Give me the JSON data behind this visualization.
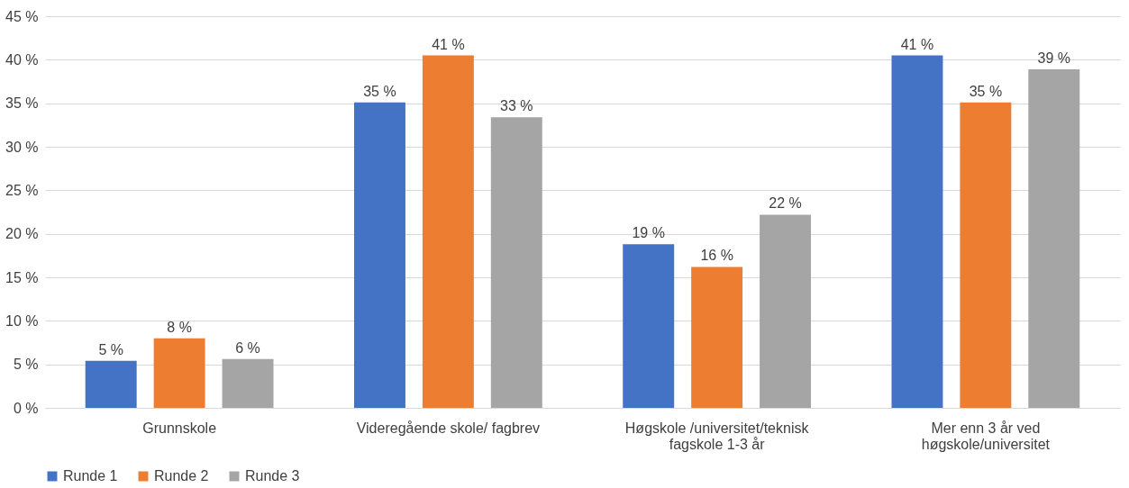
{
  "chart_data": {
    "type": "bar",
    "categories": [
      "Grunnskole",
      "Videregående skole/ fagbrev",
      "Høgskole /universitet/teknisk fagskole 1-3 år",
      "Mer enn 3 år ved høgskole/universitet"
    ],
    "series": [
      {
        "name": "Runde 1",
        "color": "#4472c4",
        "values": [
          5.4,
          35.1,
          18.8,
          40.5
        ],
        "value_labels": [
          "5 %",
          "35 %",
          "19 %",
          "41 %"
        ]
      },
      {
        "name": "Runde 2",
        "color": "#ed7d31",
        "values": [
          8.0,
          40.5,
          16.2,
          35.1
        ],
        "value_labels": [
          "8 %",
          "41 %",
          "16 %",
          "35 %"
        ]
      },
      {
        "name": "Runde 3",
        "color": "#a5a5a5",
        "values": [
          5.6,
          33.4,
          22.2,
          38.9
        ],
        "value_labels": [
          "6 %",
          "33 %",
          "22 %",
          "39 %"
        ]
      }
    ],
    "ylim": [
      0,
      45
    ],
    "yticks": [
      {
        "value": 0,
        "label": "0 %"
      },
      {
        "value": 5,
        "label": "5 %"
      },
      {
        "value": 10,
        "label": "10 %"
      },
      {
        "value": 15,
        "label": "15 %"
      },
      {
        "value": 20,
        "label": "20 %"
      },
      {
        "value": 25,
        "label": "25 %"
      },
      {
        "value": 30,
        "label": "30 %"
      },
      {
        "value": 35,
        "label": "35 %"
      },
      {
        "value": 40,
        "label": "40 %"
      },
      {
        "value": 45,
        "label": "45 %"
      }
    ],
    "grid": "y",
    "legend": "bottom"
  }
}
